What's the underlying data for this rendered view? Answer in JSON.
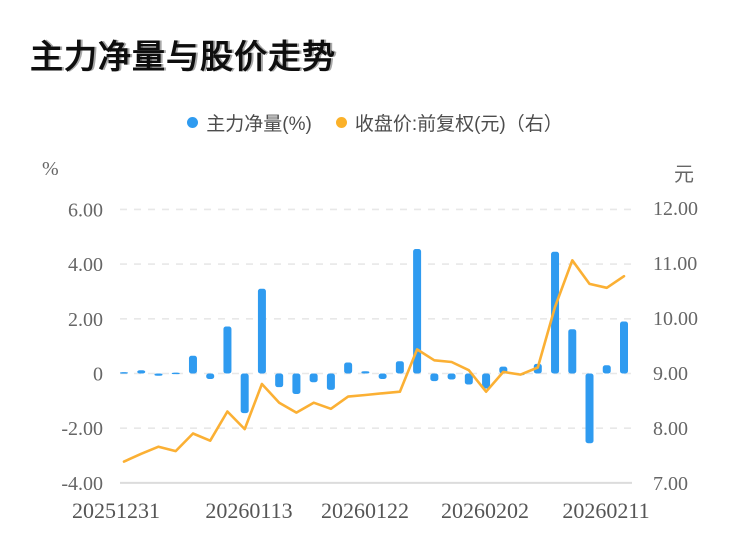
{
  "title": "主力净量与股价走势",
  "legend": [
    {
      "label": "主力净量(%)",
      "color": "#2F9BF0",
      "type": "bar"
    },
    {
      "label": "收盘价:前复权(元)（右）",
      "color": "#FBB129",
      "type": "line"
    }
  ],
  "left_axis": {
    "unit": "%",
    "ticks": [
      {
        "label": "6.00",
        "value": 6
      },
      {
        "label": "4.00",
        "value": 4
      },
      {
        "label": "2.00",
        "value": 2
      },
      {
        "label": "0",
        "value": 0
      },
      {
        "label": "-2.00",
        "value": -2
      },
      {
        "label": "-4.00",
        "value": -4
      }
    ],
    "min": -4,
    "max": 6
  },
  "right_axis": {
    "unit": "元",
    "ticks": [
      {
        "label": "12.00",
        "value": 12
      },
      {
        "label": "11.00",
        "value": 11
      },
      {
        "label": "10.00",
        "value": 10
      },
      {
        "label": "9.00",
        "value": 9
      },
      {
        "label": "8.00",
        "value": 8
      },
      {
        "label": "7.00",
        "value": 7
      }
    ],
    "min": 7,
    "max": 12
  },
  "chart_data": {
    "type": "bar+line",
    "num_points": 30,
    "grid": "dashed-horizontal",
    "legend_position": "top-center",
    "x_tick_labels": [
      {
        "index": 0,
        "label": "20251231"
      },
      {
        "index": 8,
        "label": "20260113"
      },
      {
        "index": 15,
        "label": "20260122"
      },
      {
        "index": 22,
        "label": "20260202"
      },
      {
        "index": 29,
        "label": "20260211"
      }
    ],
    "series": [
      {
        "name": "主力净量(%)",
        "type": "bar",
        "axis": "left",
        "color": "#2F9BF0",
        "values": [
          0.05,
          0.12,
          -0.08,
          0.03,
          0.65,
          -0.2,
          1.72,
          -1.45,
          3.1,
          -0.5,
          -0.75,
          -0.32,
          -0.6,
          0.4,
          0.08,
          -0.2,
          0.45,
          4.55,
          -0.28,
          -0.22,
          -0.4,
          -0.55,
          0.25,
          -0.06,
          0.35,
          4.45,
          1.62,
          -2.55,
          0.3,
          1.9
        ]
      },
      {
        "name": "收盘价:前复权(元)",
        "type": "line",
        "axis": "right",
        "color": "#FBB034",
        "values": [
          7.39,
          7.53,
          7.66,
          7.58,
          7.9,
          7.77,
          8.3,
          7.98,
          8.8,
          8.46,
          8.28,
          8.46,
          8.35,
          8.57,
          8.6,
          8.63,
          8.66,
          9.43,
          9.23,
          9.2,
          9.05,
          8.66,
          9.02,
          8.97,
          9.1,
          10.2,
          11.05,
          10.62,
          10.55,
          10.76
        ]
      }
    ]
  }
}
